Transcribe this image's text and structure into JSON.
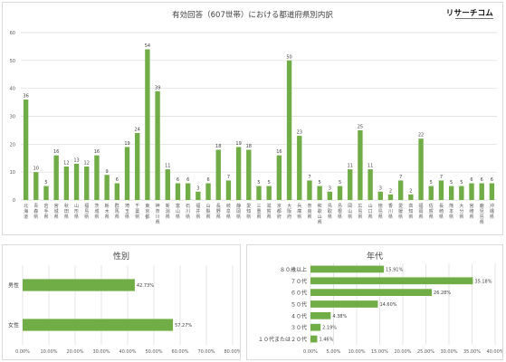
{
  "colors": {
    "bar": "#70ad47",
    "grid": "#d9d9d9",
    "axis_text": "#595959",
    "label_text": "#404040"
  },
  "logo": {
    "text": "リサーチコム"
  },
  "chart_data": [
    {
      "type": "bar",
      "title": "有効回答（607世帯）における都道府県別内訳",
      "xlabel": "",
      "ylabel": "",
      "ylim": [
        0,
        60
      ],
      "yticks": [
        0,
        10,
        20,
        30,
        40,
        50,
        60
      ],
      "grid": true,
      "categories": [
        "北海道",
        "青森県",
        "岩手県",
        "宮城県",
        "秋田県",
        "山形県",
        "福島県",
        "茨城県",
        "栃木県",
        "群馬県",
        "埼玉県",
        "千葉県",
        "東京都",
        "神奈川県",
        "新潟県",
        "富山県",
        "石川県",
        "福井県",
        "山梨県",
        "長野県",
        "岐阜県",
        "静岡県",
        "愛知県",
        "三重県",
        "滋賀県",
        "京都府",
        "大阪府",
        "兵庫県",
        "奈良県",
        "和歌山県",
        "鳥取県",
        "島根県",
        "岡山県",
        "広島県",
        "山口県",
        "徳島県",
        "香川県",
        "愛媛県",
        "高知県",
        "福岡県",
        "佐賀県",
        "長崎県",
        "熊本県",
        "大分県",
        "宮崎県",
        "鹿児島県",
        "沖縄県"
      ],
      "values": [
        36,
        10,
        5,
        16,
        12,
        13,
        12,
        16,
        9,
        6,
        19,
        24,
        54,
        39,
        11,
        6,
        6,
        3,
        6,
        18,
        7,
        19,
        18,
        5,
        5,
        16,
        50,
        23,
        7,
        5,
        3,
        5,
        11,
        25,
        11,
        3,
        2,
        7,
        2,
        22,
        5,
        7,
        5,
        5,
        6,
        6,
        6
      ]
    },
    {
      "type": "bar",
      "orientation": "horizontal",
      "title": "性別",
      "categories": [
        "男性",
        "女性"
      ],
      "values": [
        42.73,
        57.27
      ],
      "value_labels": [
        "42.73%",
        "57.27%"
      ],
      "xlim": [
        0,
        80
      ],
      "xticks": [
        "0.00%",
        "10.00%",
        "20.00%",
        "30.00%",
        "40.00%",
        "50.00%",
        "60.00%",
        "70.00%",
        "80.00%"
      ],
      "grid": true
    },
    {
      "type": "bar",
      "orientation": "horizontal",
      "title": "年代",
      "categories": [
        "８０歳以上",
        "７０代",
        "６０代",
        "５０代",
        "４０代",
        "３０代",
        "１０代または２０代"
      ],
      "values": [
        15.91,
        35.18,
        26.28,
        14.6,
        4.38,
        2.19,
        1.46
      ],
      "value_labels": [
        "15.91%",
        "35.18%",
        "26.28%",
        "14.60%",
        "4.38%",
        "2.19%",
        "1.46%"
      ],
      "xlim": [
        0,
        40
      ],
      "xticks": [
        "0.00%",
        "5.00%",
        "10.00%",
        "15.00%",
        "20.00%",
        "25.00%",
        "30.00%",
        "35.00%",
        "40.00%"
      ],
      "grid": true
    }
  ]
}
